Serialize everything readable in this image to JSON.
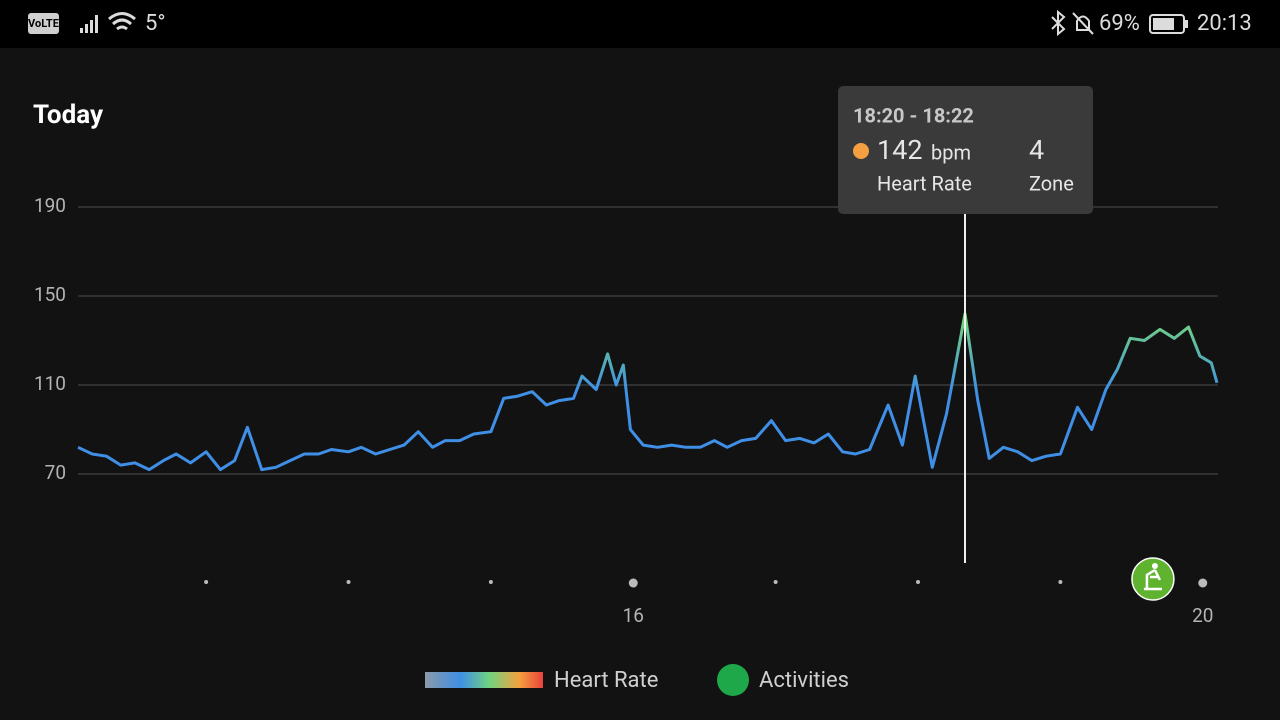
{
  "status_bar": {
    "network": "VoLTE",
    "temperature": "5°",
    "battery": "69%",
    "time": "20:13"
  },
  "chart_data": {
    "type": "line",
    "title": "Today",
    "x": [
      12.1,
      12.2,
      12.3,
      12.4,
      12.5,
      12.6,
      12.7,
      12.79,
      12.89,
      13.0,
      13.1,
      13.2,
      13.29,
      13.39,
      13.49,
      13.59,
      13.69,
      13.79,
      13.88,
      14.0,
      14.09,
      14.19,
      14.29,
      14.39,
      14.49,
      14.59,
      14.68,
      14.78,
      14.88,
      15.0,
      15.09,
      15.19,
      15.29,
      15.39,
      15.48,
      15.58,
      15.64,
      15.74,
      15.82,
      15.88,
      15.93,
      15.98,
      16.07,
      16.17,
      16.27,
      16.37,
      16.47,
      16.57,
      16.66,
      16.76,
      16.86,
      16.97,
      17.07,
      17.17,
      17.27,
      17.37,
      17.47,
      17.56,
      17.66,
      17.79,
      17.89,
      17.98,
      18.1,
      18.2,
      18.33,
      18.42,
      18.5,
      18.6,
      18.7,
      18.8,
      18.9,
      19.0,
      19.12,
      19.22,
      19.32,
      19.4,
      19.49,
      19.59,
      19.7,
      19.8,
      19.9,
      19.98,
      20.06,
      20.1
    ],
    "series": [
      {
        "name": "Heart Rate",
        "colors": [
          "#3f8fe6",
          "#72d37e"
        ],
        "values": [
          82,
          79,
          78,
          74,
          75,
          72,
          76,
          79,
          75,
          80,
          72,
          76,
          91,
          72,
          73,
          76,
          79,
          79,
          81,
          80,
          82,
          79,
          81,
          83,
          89,
          82,
          85,
          85,
          88,
          89,
          104,
          105,
          107,
          101,
          103,
          104,
          114,
          108,
          124,
          110,
          119,
          90,
          83,
          82,
          83,
          82,
          82,
          85,
          82,
          85,
          86,
          94,
          85,
          86,
          84,
          88,
          80,
          79,
          81,
          101,
          83,
          114,
          73,
          97,
          142,
          103,
          77,
          82,
          80,
          76,
          78,
          79,
          100,
          90,
          108,
          117,
          131,
          130,
          135,
          131,
          136,
          123,
          120,
          111
        ]
      }
    ],
    "activities": {
      "name": "Activities",
      "color": "#1fa84a",
      "x": [
        19.65
      ]
    },
    "xlim": [
      12.1,
      20.1
    ],
    "xticks": [
      16,
      20
    ],
    "minor_xticks": [
      13,
      14,
      15,
      17,
      18,
      19
    ],
    "ylim": [
      30,
      190
    ],
    "yticks": [
      70,
      110,
      150,
      190
    ],
    "grid": true,
    "tooltip": {
      "time": "18:20 - 18:22",
      "value": 142,
      "unit": "bpm",
      "value_name": "Heart Rate",
      "zone": 4,
      "zone_name": "Zone",
      "color": "#f5a040"
    }
  }
}
